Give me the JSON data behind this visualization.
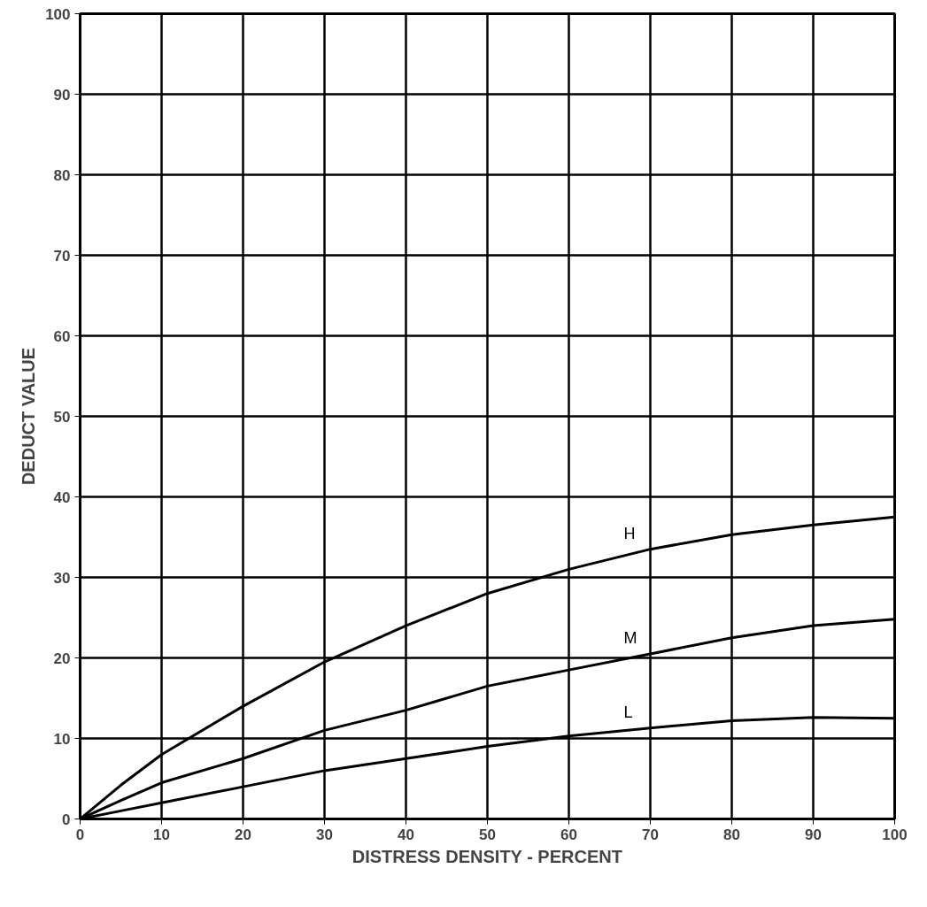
{
  "chart_data": {
    "type": "line",
    "xlabel": "DISTRESS DENSITY - PERCENT",
    "ylabel": "DEDUCT VALUE",
    "x": [
      0,
      5,
      10,
      20,
      30,
      40,
      50,
      60,
      70,
      80,
      90,
      100
    ],
    "series": [
      {
        "name": "H",
        "color": "#000000",
        "values": [
          0,
          4.2,
          8,
          14,
          19.5,
          24,
          28,
          31,
          33.5,
          35.3,
          36.5,
          37.5
        ]
      },
      {
        "name": "M",
        "color": "#000000",
        "values": [
          0,
          2.3,
          4.5,
          7.5,
          11,
          13.5,
          16.5,
          18.5,
          20.5,
          22.5,
          24,
          24.8
        ]
      },
      {
        "name": "L",
        "color": "#000000",
        "values": [
          0,
          1,
          2,
          4,
          6,
          7.5,
          9,
          10.3,
          11.3,
          12.2,
          12.6,
          12.5
        ]
      }
    ],
    "xlim": [
      0,
      100
    ],
    "ylim": [
      0,
      100
    ],
    "xticks": [
      0,
      10,
      20,
      30,
      40,
      50,
      60,
      70,
      80,
      90,
      100
    ],
    "yticks": [
      0,
      10,
      20,
      30,
      40,
      50,
      60,
      70,
      80,
      90,
      100
    ],
    "grid": true,
    "marker": "none",
    "line_style": "solid"
  }
}
